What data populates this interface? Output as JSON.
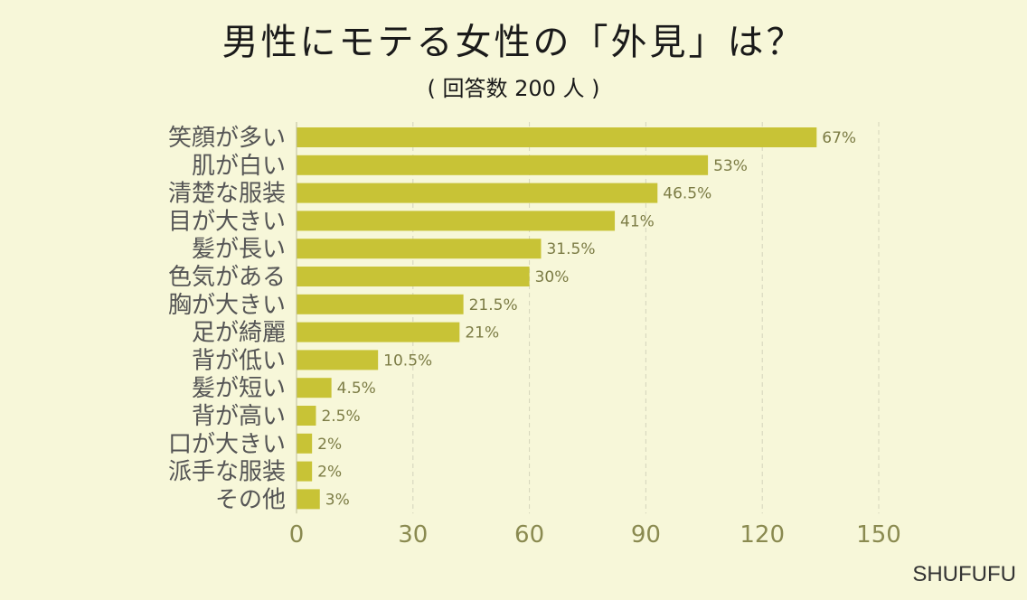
{
  "chart_data": {
    "type": "bar",
    "orientation": "horizontal",
    "title": "男性にモテる女性の「外見」は？",
    "subtitle": "( 回答数 200 人 )",
    "categories": [
      "笑顔が多い",
      "肌が白い",
      "清楚な服装",
      "目が大きい",
      "髪が長い",
      "色気がある",
      "胸が大きい",
      "足が綺麗",
      "背が低い",
      "髪が短い",
      "背が高い",
      "口が大きい",
      "派手な服装",
      "その他"
    ],
    "values": [
      134,
      106,
      93,
      82,
      63,
      60,
      43,
      42,
      21,
      9,
      5,
      4,
      4,
      6
    ],
    "value_labels": [
      "67%",
      "53%",
      "46.5%",
      "41%",
      "31.5%",
      "30%",
      "21.5%",
      "21%",
      "10.5%",
      "4.5%",
      "2.5%",
      "2%",
      "2%",
      "3%"
    ],
    "xlim": [
      0,
      150
    ],
    "x_ticks": [
      "0",
      "30",
      "60",
      "90",
      "120",
      "150"
    ],
    "grid": "vertical dashed",
    "bar_color": "#c8c336"
  },
  "brand": "SHUFUFU"
}
